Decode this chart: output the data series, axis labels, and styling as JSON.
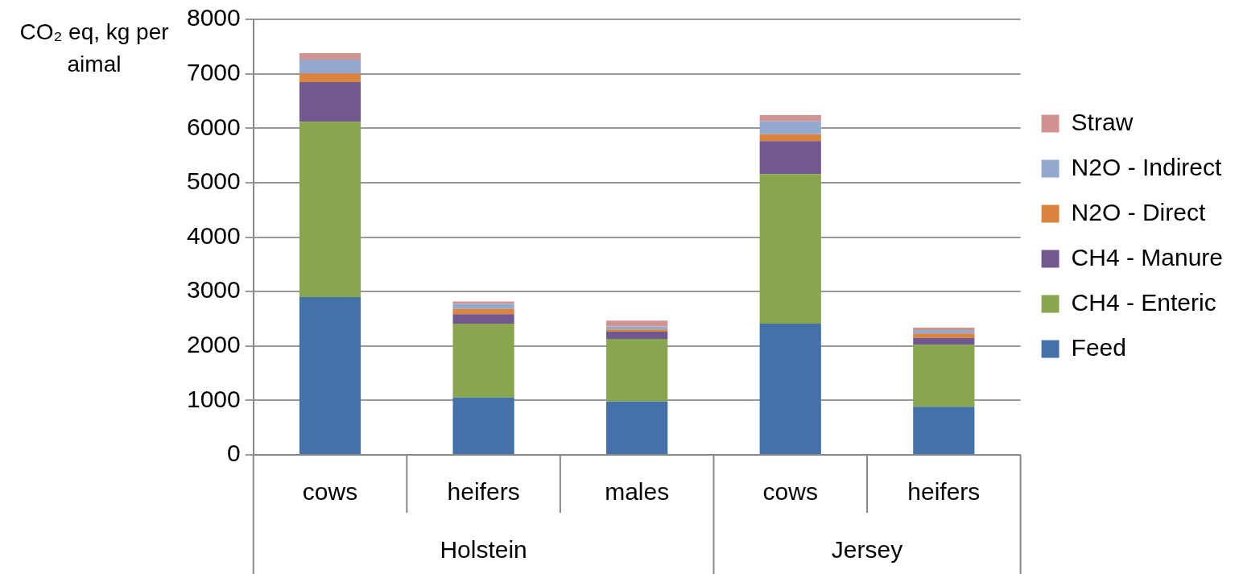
{
  "chart_data": {
    "type": "bar",
    "stacked": true,
    "ylabel": "CO₂ eq, kg per aimal",
    "categories": [
      "cows",
      "heifers",
      "males",
      "cows",
      "heifers"
    ],
    "annotations": [
      "Holstein",
      "Jersey"
    ],
    "series": [
      {
        "name": "Feed",
        "color": "#4472a8",
        "values": [
          2900,
          1054,
          981,
          2410,
          885
        ]
      },
      {
        "name": "CH4 - Enteric",
        "color": "#89a54e",
        "values": [
          3220,
          1356,
          1147,
          2746,
          1137
        ]
      },
      {
        "name": "CH4 - Manure",
        "color": "#71588f",
        "values": [
          725,
          175,
          136,
          606,
          125
        ]
      },
      {
        "name": "N2O - Direct",
        "color": "#db843d",
        "values": [
          160,
          97,
          39,
          127,
          83
        ]
      },
      {
        "name": "N2O - Indirect",
        "color": "#93a9cf",
        "values": [
          257,
          92,
          54,
          238,
          63
        ]
      },
      {
        "name": "Straw",
        "color": "#d19392",
        "values": [
          117,
          44,
          107,
          112,
          44
        ]
      }
    ],
    "ylim": [
      0,
      8000
    ],
    "yticks": [
      0,
      1000,
      2000,
      3000,
      4000,
      5000,
      6000,
      7000,
      8000
    ],
    "grid": "y",
    "legend": "right"
  }
}
